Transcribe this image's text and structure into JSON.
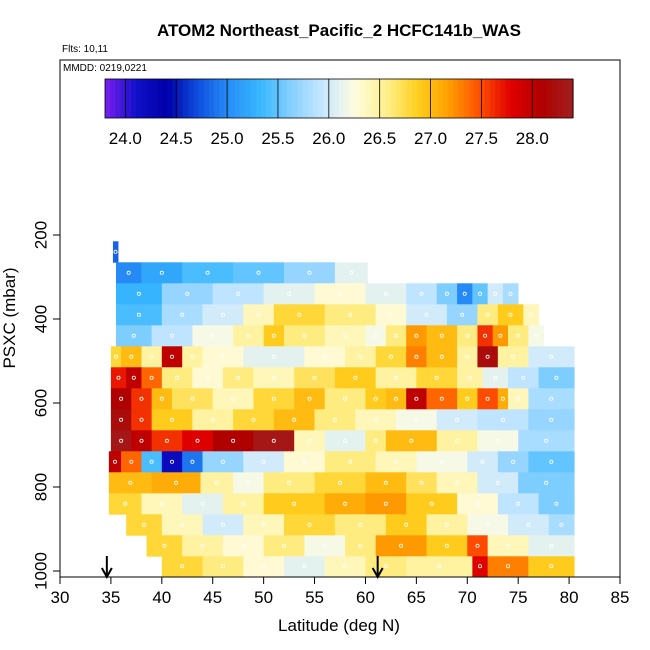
{
  "chart_data": {
    "type": "heatmap",
    "title": "ATOM2 Northeast_Pacific_2 HCFC141b_WAS",
    "flights_label": "Flts: 10,11",
    "date_label": "MMDD: 0219,0221",
    "xlabel": "Latitude (deg N)",
    "ylabel": "PSXC (mbar)",
    "xlim": [
      30,
      85
    ],
    "ylim": [
      1000,
      200
    ],
    "x_ticks": [
      "30",
      "35",
      "40",
      "45",
      "50",
      "55",
      "60",
      "65",
      "70",
      "75",
      "80",
      "85"
    ],
    "y_ticks": [
      "200",
      "400",
      "600",
      "800",
      "1000"
    ],
    "colorbar": {
      "min": 23.8,
      "max": 28.4,
      "tick_labels": [
        "24.0",
        "24.5",
        "25.0",
        "25.5",
        "26.0",
        "26.5",
        "27.0",
        "27.5",
        "28.0"
      ],
      "colors": [
        "#7b20f0",
        "#1010c8",
        "#0000a8",
        "#1050e0",
        "#2890f8",
        "#38b8ff",
        "#88d0ff",
        "#c8e8ff",
        "#fffce0",
        "#fff090",
        "#ffd020",
        "#ffa000",
        "#ff5000",
        "#e00000",
        "#b00000",
        "#a02020"
      ]
    },
    "arrows_latitude": [
      34.6,
      61.2
    ],
    "series": [
      {
        "p_top": 215,
        "p_bot": 265,
        "segments": [
          [
            35.2,
            35.7,
            24.8
          ]
        ]
      },
      {
        "p_top": 265,
        "p_bot": 315,
        "segments": [
          [
            35.5,
            38,
            25.0
          ],
          [
            38,
            42,
            25.2
          ],
          [
            42,
            47,
            25.4
          ],
          [
            47,
            52,
            25.5
          ],
          [
            52,
            57,
            25.7
          ],
          [
            57,
            60.2,
            26.1
          ]
        ]
      },
      {
        "p_top": 315,
        "p_bot": 365,
        "segments": [
          [
            35.5,
            40,
            25.3
          ],
          [
            40,
            45,
            25.7
          ],
          [
            45,
            50,
            25.9
          ],
          [
            50,
            55,
            26.1
          ],
          [
            55,
            60,
            26.3
          ],
          [
            60,
            64,
            26.1
          ],
          [
            64,
            67,
            25.9
          ],
          [
            67,
            69,
            25.6
          ],
          [
            69,
            70.5,
            25.0
          ],
          [
            70.5,
            72,
            25.5
          ],
          [
            72,
            73.5,
            26.0
          ],
          [
            73.5,
            75,
            25.8
          ]
        ]
      },
      {
        "p_top": 365,
        "p_bot": 415,
        "segments": [
          [
            35.5,
            40,
            25.4
          ],
          [
            40,
            44,
            25.8
          ],
          [
            44,
            48,
            26.0
          ],
          [
            48,
            51,
            26.4
          ],
          [
            51,
            56,
            26.8
          ],
          [
            56,
            61,
            26.6
          ],
          [
            61,
            64,
            26.3
          ],
          [
            64,
            68,
            26.0
          ],
          [
            68,
            71,
            25.7
          ],
          [
            71,
            73,
            26.6
          ],
          [
            73,
            75.5,
            26.9
          ],
          [
            75.5,
            77,
            26.4
          ]
        ]
      },
      {
        "p_top": 415,
        "p_bot": 465,
        "segments": [
          [
            35.5,
            39,
            25.6
          ],
          [
            39,
            43,
            25.9
          ],
          [
            43,
            47,
            26.2
          ],
          [
            47,
            50,
            26.5
          ],
          [
            50,
            52,
            26.9
          ],
          [
            52,
            56,
            26.6
          ],
          [
            56,
            60,
            26.4
          ],
          [
            60,
            62,
            26.2
          ],
          [
            62,
            64,
            26.6
          ],
          [
            64,
            66,
            27.2
          ],
          [
            66,
            69,
            27.0
          ],
          [
            69,
            71,
            26.6
          ],
          [
            71,
            72.5,
            27.6
          ],
          [
            72.5,
            74,
            27.2
          ],
          [
            74,
            76,
            26.6
          ],
          [
            76,
            77.5,
            26.2
          ]
        ]
      },
      {
        "p_top": 465,
        "p_bot": 515,
        "segments": [
          [
            35,
            36,
            26.8
          ],
          [
            36,
            38,
            27.0
          ],
          [
            38,
            40,
            26.5
          ],
          [
            40,
            42,
            28.0
          ],
          [
            42,
            44,
            26.5
          ],
          [
            44,
            48,
            26.3
          ],
          [
            48,
            54,
            26.1
          ],
          [
            54,
            58,
            26.3
          ],
          [
            58,
            61,
            26.5
          ],
          [
            61,
            64,
            26.8
          ],
          [
            64,
            66,
            27.3
          ],
          [
            66,
            69,
            27.0
          ],
          [
            69,
            71,
            26.5
          ],
          [
            71,
            73,
            28.2
          ],
          [
            73,
            76,
            26.5
          ],
          [
            76,
            80.5,
            26.0
          ]
        ]
      },
      {
        "p_top": 515,
        "p_bot": 565,
        "segments": [
          [
            35,
            36.5,
            27.7
          ],
          [
            36.5,
            38,
            28.0
          ],
          [
            38,
            40,
            27.4
          ],
          [
            40,
            43,
            26.6
          ],
          [
            43,
            46,
            26.3
          ],
          [
            46,
            49,
            26.6
          ],
          [
            49,
            53,
            26.4
          ],
          [
            53,
            57,
            26.7
          ],
          [
            57,
            61,
            26.9
          ],
          [
            61,
            65,
            26.5
          ],
          [
            65,
            69,
            26.8
          ],
          [
            69,
            71.5,
            26.5
          ],
          [
            71.5,
            74,
            26.1
          ],
          [
            74,
            77,
            25.9
          ],
          [
            77,
            80.5,
            25.6
          ]
        ]
      },
      {
        "p_top": 565,
        "p_bot": 615,
        "segments": [
          [
            35,
            37,
            28.1
          ],
          [
            37,
            39,
            27.6
          ],
          [
            39,
            41,
            27.0
          ],
          [
            41,
            45,
            26.7
          ],
          [
            45,
            49,
            26.4
          ],
          [
            49,
            53,
            26.8
          ],
          [
            53,
            56,
            27.0
          ],
          [
            56,
            60,
            26.6
          ],
          [
            60,
            62,
            26.9
          ],
          [
            62,
            64,
            27.0
          ],
          [
            64,
            66,
            28.0
          ],
          [
            66,
            69,
            27.4
          ],
          [
            69,
            71,
            26.9
          ],
          [
            71,
            73,
            27.5
          ],
          [
            73,
            74,
            27.1
          ],
          [
            74,
            76,
            26.4
          ],
          [
            76,
            80.5,
            25.8
          ]
        ]
      },
      {
        "p_top": 615,
        "p_bot": 665,
        "segments": [
          [
            35,
            37,
            28.2
          ],
          [
            37,
            39,
            27.6
          ],
          [
            39,
            43,
            26.9
          ],
          [
            43,
            47,
            26.5
          ],
          [
            47,
            51,
            26.8
          ],
          [
            51,
            55,
            27.0
          ],
          [
            55,
            59,
            26.6
          ],
          [
            59,
            63,
            26.4
          ],
          [
            63,
            67,
            26.2
          ],
          [
            67,
            71,
            26.0
          ],
          [
            71,
            76,
            25.9
          ],
          [
            76,
            80.5,
            25.7
          ]
        ]
      },
      {
        "p_top": 665,
        "p_bot": 715,
        "segments": [
          [
            35,
            37,
            28.3
          ],
          [
            37,
            39,
            28.0
          ],
          [
            39,
            42,
            27.6
          ],
          [
            42,
            45,
            27.8
          ],
          [
            45,
            49,
            28.1
          ],
          [
            49,
            53,
            28.3
          ],
          [
            53,
            56,
            26.4
          ],
          [
            56,
            60,
            26.1
          ],
          [
            60,
            62,
            26.6
          ],
          [
            62,
            67,
            27.0
          ],
          [
            67,
            71,
            26.5
          ],
          [
            71,
            75,
            26.2
          ],
          [
            75,
            80.5,
            25.8
          ]
        ]
      },
      {
        "p_top": 715,
        "p_bot": 765,
        "segments": [
          [
            34.8,
            36,
            28.0
          ],
          [
            36,
            38,
            27.4
          ],
          [
            38,
            40,
            25.4
          ],
          [
            40,
            42,
            24.2
          ],
          [
            42,
            44,
            24.9
          ],
          [
            44,
            48,
            25.7
          ],
          [
            48,
            52,
            26.0
          ],
          [
            52,
            56,
            26.3
          ],
          [
            56,
            61,
            26.6
          ],
          [
            61,
            65,
            26.4
          ],
          [
            65,
            70,
            26.2
          ],
          [
            70,
            73,
            26.0
          ],
          [
            73,
            76,
            25.7
          ],
          [
            76,
            80.5,
            25.5
          ]
        ]
      },
      {
        "p_top": 765,
        "p_bot": 815,
        "segments": [
          [
            34.8,
            39,
            27.0
          ],
          [
            39,
            43.8,
            27.1
          ],
          [
            43.8,
            47,
            26.5
          ],
          [
            47,
            50,
            26.2
          ],
          [
            50,
            55,
            26.6
          ],
          [
            55,
            60,
            26.8
          ],
          [
            60,
            64,
            27.0
          ],
          [
            64,
            67,
            26.7
          ],
          [
            67,
            71,
            26.4
          ],
          [
            71,
            75,
            26.0
          ],
          [
            75,
            80.5,
            25.6
          ]
        ]
      },
      {
        "p_top": 815,
        "p_bot": 865,
        "segments": [
          [
            34.8,
            38,
            26.8
          ],
          [
            38,
            42,
            26.4
          ],
          [
            42,
            46,
            26.1
          ],
          [
            46,
            50,
            26.5
          ],
          [
            50,
            56,
            26.9
          ],
          [
            56,
            60,
            27.1
          ],
          [
            60,
            64,
            27.2
          ],
          [
            64,
            69,
            26.9
          ],
          [
            69,
            73,
            26.3
          ],
          [
            73,
            77,
            25.9
          ],
          [
            77,
            80.5,
            25.6
          ]
        ]
      },
      {
        "p_top": 865,
        "p_bot": 915,
        "segments": [
          [
            36.5,
            40,
            26.8
          ],
          [
            40,
            44,
            26.4
          ],
          [
            44,
            48,
            26.0
          ],
          [
            48,
            52,
            26.4
          ],
          [
            52,
            57,
            26.8
          ],
          [
            57,
            62,
            26.6
          ],
          [
            62,
            66,
            26.9
          ],
          [
            66,
            70,
            26.5
          ],
          [
            70,
            74,
            26.2
          ],
          [
            74,
            78,
            26.0
          ],
          [
            78,
            80.5,
            25.8
          ]
        ]
      },
      {
        "p_top": 915,
        "p_bot": 965,
        "segments": [
          [
            38.5,
            42,
            26.8
          ],
          [
            42,
            46,
            26.5
          ],
          [
            46,
            50,
            26.3
          ],
          [
            50,
            54,
            26.6
          ],
          [
            54,
            58,
            26.2
          ],
          [
            58,
            61,
            26.6
          ],
          [
            61,
            66,
            27.2
          ],
          [
            66,
            70,
            26.9
          ],
          [
            70,
            72,
            27.5
          ],
          [
            72,
            76,
            26.4
          ],
          [
            76,
            80.5,
            26.1
          ]
        ]
      },
      {
        "p_top": 965,
        "p_bot": 1012,
        "segments": [
          [
            40,
            44,
            26.8
          ],
          [
            44,
            48,
            26.6
          ],
          [
            48,
            52,
            26.3
          ],
          [
            52,
            56,
            26.1
          ],
          [
            56,
            60,
            26.4
          ],
          [
            60,
            64,
            26.6
          ],
          [
            64,
            70.5,
            26.5
          ],
          [
            70.5,
            72,
            27.8
          ],
          [
            72,
            76,
            27.3
          ],
          [
            76,
            80.5,
            26.9
          ]
        ]
      }
    ]
  }
}
